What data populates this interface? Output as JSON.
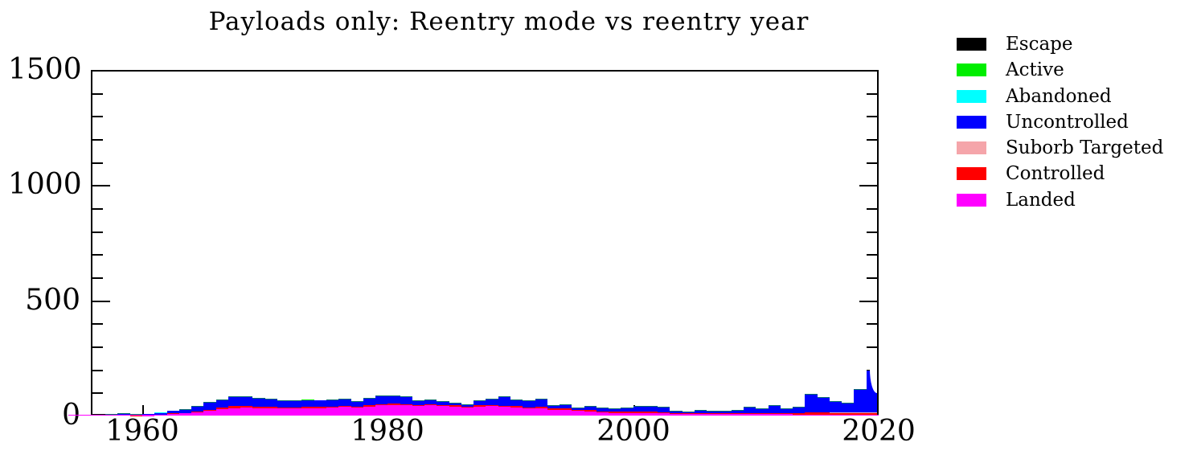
{
  "title": "Payloads only: Reentry mode vs reentry year",
  "legend": [
    {
      "label": "Escape",
      "color": "#000000"
    },
    {
      "label": "Active",
      "color": "#00ee00"
    },
    {
      "label": "Abandoned",
      "color": "#00ffff"
    },
    {
      "label": "Uncontrolled",
      "color": "#0000ff"
    },
    {
      "label": "Suborb Targeted",
      "color": "#f5a5aa"
    },
    {
      "label": "Controlled",
      "color": "#ff0000"
    },
    {
      "label": "Landed",
      "color": "#ff00ff"
    }
  ],
  "axes": {
    "ytick_labels": [
      "0",
      "500",
      "1000",
      "1500"
    ],
    "xtick_labels": [
      "1960",
      "1980",
      "2000",
      "2020"
    ],
    "xtick_years": [
      1960,
      1980,
      2000,
      2020
    ],
    "ymajor_values": [
      500,
      1000
    ],
    "yminor_values": [
      100,
      200,
      300,
      400,
      600,
      700,
      800,
      900,
      1100,
      1200,
      1300,
      1400
    ]
  },
  "chart_data": {
    "type": "bar",
    "stacked": true,
    "title": "Payloads only: Reentry mode vs reentry year",
    "xlabel": "",
    "ylabel": "",
    "ylim": [
      0,
      1500
    ],
    "xlim": [
      1955.8,
      2020
    ],
    "grid": false,
    "legend_position": "right-outside",
    "years": [
      1957,
      1958,
      1959,
      1960,
      1961,
      1962,
      1963,
      1964,
      1965,
      1966,
      1967,
      1968,
      1969,
      1970,
      1971,
      1972,
      1973,
      1974,
      1975,
      1976,
      1977,
      1978,
      1979,
      1980,
      1981,
      1982,
      1983,
      1984,
      1985,
      1986,
      1987,
      1988,
      1989,
      1990,
      1991,
      1992,
      1993,
      1994,
      1995,
      1996,
      1997,
      1998,
      1999,
      2000,
      2001,
      2002,
      2003,
      2004,
      2005,
      2006,
      2007,
      2008,
      2009,
      2010,
      2011,
      2012,
      2013,
      2014,
      2015,
      2016,
      2017,
      2018,
      2019
    ],
    "series": [
      {
        "name": "Landed",
        "color": "#ff00ff",
        "values": [
          0,
          0,
          0,
          1,
          3,
          6,
          9,
          14,
          20,
          28,
          33,
          36,
          32,
          33,
          30,
          30,
          33,
          33,
          34,
          38,
          35,
          40,
          44,
          46,
          45,
          43,
          44,
          42,
          40,
          36,
          40,
          42,
          38,
          36,
          30,
          32,
          26,
          25,
          20,
          18,
          14,
          12,
          12,
          12,
          10,
          9,
          7,
          6,
          7,
          6,
          6,
          6,
          6,
          6,
          6,
          6,
          5,
          5,
          5,
          5,
          5,
          5,
          5
        ]
      },
      {
        "name": "Controlled",
        "color": "#ff0000",
        "values": [
          0,
          0,
          1,
          1,
          2,
          3,
          3,
          5,
          6,
          8,
          8,
          7,
          6,
          6,
          6,
          5,
          5,
          5,
          5,
          5,
          4,
          5,
          5,
          5,
          5,
          4,
          4,
          4,
          4,
          3,
          4,
          4,
          5,
          5,
          5,
          5,
          5,
          5,
          5,
          5,
          5,
          5,
          5,
          6,
          6,
          6,
          4,
          3,
          4,
          4,
          4,
          4,
          5,
          5,
          6,
          5,
          7,
          8,
          8,
          6,
          6,
          6,
          6
        ]
      },
      {
        "name": "Suborb Targeted",
        "color": "#f5a5aa",
        "values": [
          0,
          0,
          0,
          0,
          0,
          0,
          0,
          0,
          0,
          0,
          0,
          0,
          0,
          0,
          0,
          0,
          0,
          0,
          0,
          0,
          0,
          0,
          0,
          0,
          0,
          0,
          0,
          0,
          0,
          0,
          0,
          0,
          0,
          0,
          0,
          0,
          0,
          0,
          0,
          0,
          0,
          0,
          0,
          0,
          0,
          0,
          0,
          1,
          0,
          0,
          0,
          0,
          0,
          0,
          0,
          0,
          0,
          0,
          2,
          2,
          2,
          2,
          2
        ]
      },
      {
        "name": "Uncontrolled",
        "color": "#0000ff",
        "values": [
          5,
          8,
          3,
          4,
          7,
          11,
          13,
          19,
          29,
          32,
          39,
          39,
          34,
          31,
          27,
          27,
          30,
          28,
          26,
          27,
          21,
          30,
          36,
          34,
          29,
          17,
          20,
          12,
          10,
          8,
          18,
          25,
          39,
          27,
          27,
          33,
          11,
          17,
          8,
          14,
          11,
          10,
          16,
          19,
          22,
          20,
          6,
          3,
          10,
          7,
          7,
          12,
          24,
          18,
          30,
          16,
          23,
          78,
          62,
          45,
          39,
          99,
          183
        ]
      },
      {
        "name": "Abandoned",
        "color": "#00ffff",
        "values": [
          0,
          0,
          0,
          1,
          1,
          1,
          0,
          0,
          0,
          0,
          0,
          0,
          0,
          0,
          0,
          0,
          0,
          0,
          0,
          0,
          0,
          0,
          0,
          0,
          0,
          0,
          0,
          0,
          0,
          0,
          0,
          0,
          0,
          0,
          0,
          0,
          0,
          0,
          0,
          0,
          0,
          0,
          0,
          0,
          0,
          0,
          0,
          0,
          0,
          0,
          0,
          0,
          0,
          0,
          0,
          0,
          0,
          0,
          0,
          0,
          0,
          0,
          0
        ]
      },
      {
        "name": "Active",
        "color": "#00ee00",
        "values": [
          0,
          0,
          0,
          0,
          0,
          0,
          0,
          0,
          0,
          0,
          0,
          0,
          0,
          0,
          0,
          0,
          2,
          2,
          0,
          0,
          0,
          0,
          0,
          0,
          0,
          0,
          0,
          0,
          0,
          0,
          0,
          0,
          0,
          0,
          0,
          0,
          0,
          0,
          0,
          0,
          0,
          0,
          0,
          0,
          0,
          0,
          0,
          0,
          0,
          0,
          0,
          0,
          0,
          0,
          0,
          0,
          0,
          0,
          0,
          0,
          0,
          0,
          0
        ]
      },
      {
        "name": "Escape",
        "color": "#000000",
        "values": [
          0,
          0,
          0,
          0,
          0,
          0,
          0,
          0,
          0,
          0,
          0,
          0,
          0,
          0,
          0,
          0,
          0,
          0,
          0,
          0,
          0,
          0,
          0,
          0,
          0,
          0,
          0,
          0,
          0,
          0,
          0,
          0,
          0,
          0,
          0,
          0,
          0,
          0,
          0,
          0,
          0,
          0,
          0,
          0,
          0,
          0,
          0,
          0,
          0,
          0,
          0,
          0,
          0,
          0,
          0,
          0,
          0,
          0,
          0,
          0,
          0,
          0,
          4
        ]
      }
    ]
  }
}
